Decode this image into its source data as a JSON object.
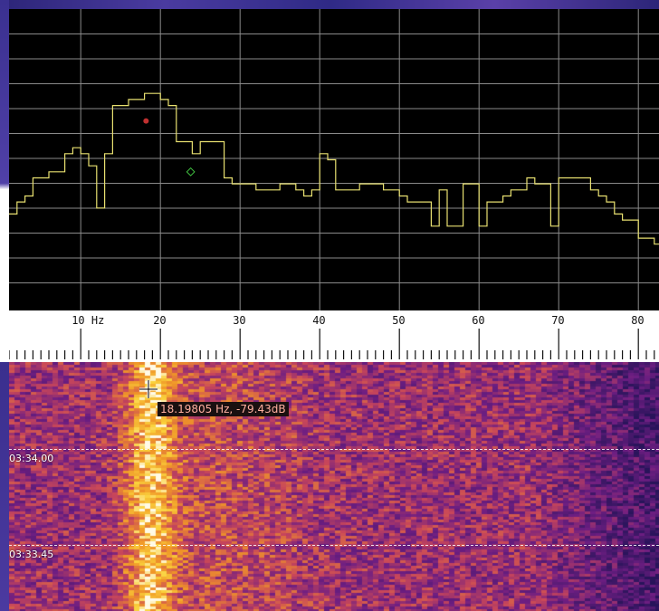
{
  "spectrum": {
    "trace_color": "#e8e070",
    "grid_color": "#8a8a8a",
    "peak_marker_color": "#c03030",
    "aux_marker_color": "#40c040"
  },
  "scale": {
    "first_label": "10 Hz",
    "labels": [
      "20",
      "30",
      "40",
      "50",
      "60",
      "70",
      "80"
    ]
  },
  "waterfall": {
    "time_labels": [
      "03:34.00",
      "03:33.45"
    ],
    "cursor_readout": "18.19805 Hz, -79.43dB"
  },
  "chart_data": {
    "type": "line",
    "xlabel": "",
    "ylabel": "",
    "x_unit": "Hz",
    "xlim": [
      1,
      86.3
    ],
    "x_ticks": [
      10,
      20,
      30,
      40,
      50,
      60,
      70,
      80
    ],
    "grid": true,
    "x": [
      1,
      2,
      3,
      4,
      5,
      6,
      7,
      8,
      9,
      10,
      11,
      12,
      13,
      14,
      15,
      16,
      17,
      18,
      19,
      20,
      21,
      22,
      23,
      24,
      25,
      26,
      27,
      28,
      29,
      30,
      31,
      32,
      33,
      34,
      35,
      36,
      37,
      38,
      39,
      40,
      41,
      42,
      43,
      44,
      45,
      46,
      47,
      48,
      49,
      50,
      51,
      52,
      53,
      54,
      55,
      56,
      57,
      58,
      59,
      60,
      61,
      62,
      63,
      64,
      65,
      66,
      67,
      68,
      69,
      70,
      71,
      72,
      73,
      74,
      75,
      76,
      77,
      78,
      79,
      80,
      81,
      82,
      83,
      84,
      85,
      86
    ],
    "y": [
      -87,
      -86,
      -85.5,
      -84,
      -84,
      -83.5,
      -83.5,
      -82,
      -81.5,
      -82,
      -83,
      -86.5,
      -82,
      -78,
      -78,
      -77.5,
      -77.5,
      -77,
      -77,
      -77.5,
      -78,
      -81,
      -81,
      -82,
      -81,
      -81,
      -81,
      -84,
      -84.5,
      -84.5,
      -84.5,
      -85,
      -85,
      -85,
      -84.5,
      -84.5,
      -85,
      -85.5,
      -85,
      -82,
      -82.5,
      -85,
      -85,
      -85,
      -84.5,
      -84.5,
      -84.5,
      -85,
      -85,
      -85.5,
      -86,
      -86,
      -86,
      -88,
      -85,
      -88,
      -88,
      -84.5,
      -84.5,
      -88,
      -86,
      -86,
      -85.5,
      -85,
      -85,
      -84,
      -84.5,
      -84.5,
      -88,
      -84,
      -84,
      -84,
      -84,
      -85,
      -85.5,
      -86,
      -87,
      -87.5,
      -87.5,
      -89,
      -89,
      -89.5,
      -89,
      -88,
      -87,
      -86
    ],
    "peak": {
      "x": 18.19805,
      "y": -79.43
    }
  }
}
